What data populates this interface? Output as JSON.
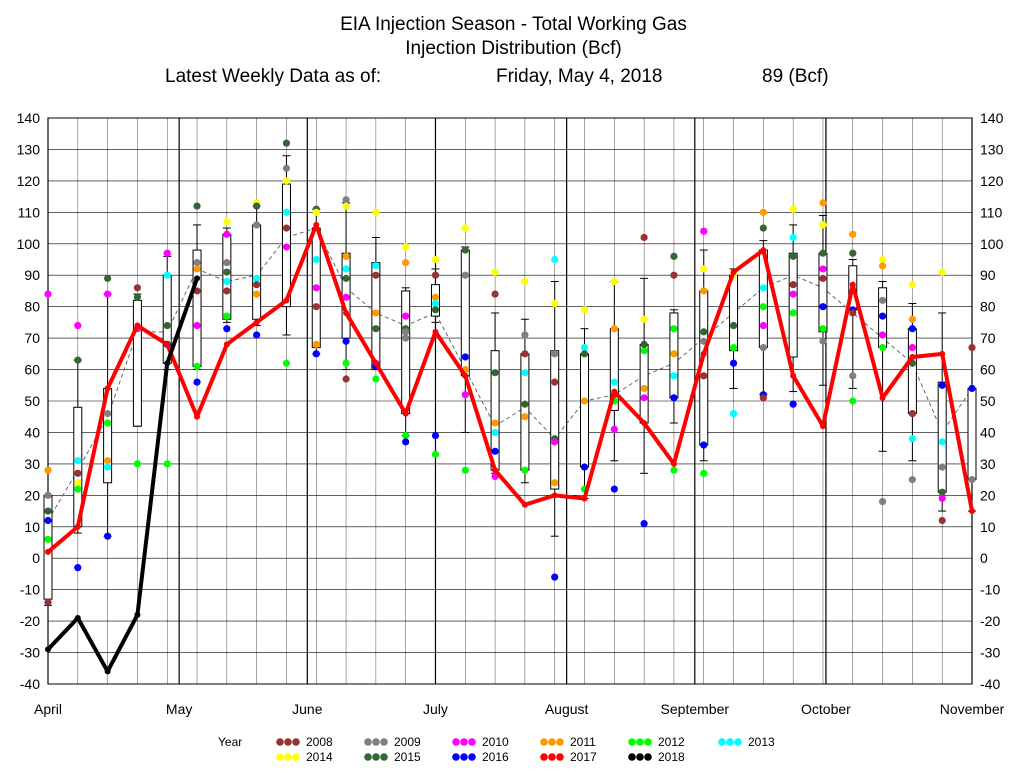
{
  "header": {
    "title_line1": "EIA Injection Season - Total Working Gas",
    "title_line2": "Injection Distribution (Bcf)",
    "latest_label": "Latest Weekly Data as of:",
    "latest_date": "Friday, May 4, 2018",
    "latest_value": "89 (Bcf)"
  },
  "chart_data": {
    "type": "line",
    "title": "EIA Injection Season - Total Working Gas",
    "subtitle": "Injection Distribution (Bcf)",
    "ylim": [
      -40,
      140
    ],
    "yticks": [
      140,
      130,
      120,
      110,
      100,
      90,
      80,
      70,
      60,
      50,
      40,
      30,
      20,
      10,
      0,
      -10,
      -20,
      -30,
      -40
    ],
    "x_labels": [
      "April",
      "May",
      "June",
      "July",
      "August",
      "September",
      "October",
      "November"
    ],
    "grid": true,
    "legend_position": "bottom",
    "legend_title": "Year",
    "series": [
      {
        "name": "2008",
        "color": "#993333"
      },
      {
        "name": "2009",
        "color": "#808080"
      },
      {
        "name": "2010",
        "color": "#ff00ff"
      },
      {
        "name": "2011",
        "color": "#ff9900"
      },
      {
        "name": "2012",
        "color": "#00ff00"
      },
      {
        "name": "2013",
        "color": "#00ffff"
      },
      {
        "name": "2014",
        "color": "#ffff00"
      },
      {
        "name": "2015",
        "color": "#336633"
      },
      {
        "name": "2016",
        "color": "#0000ff"
      },
      {
        "name": "2017",
        "color": "#ff0000"
      },
      {
        "name": "2018",
        "color": "#000000"
      }
    ],
    "week_x": [
      0,
      1,
      2,
      3,
      4,
      5,
      6,
      7,
      8,
      9,
      10,
      11,
      12,
      13,
      14,
      15,
      16,
      17,
      18,
      19,
      20,
      21,
      22,
      23,
      24,
      25,
      26,
      27,
      28,
      29,
      30,
      31,
      32,
      33,
      34,
      35
    ],
    "series_2017": [
      2,
      10,
      54,
      74,
      68,
      45,
      68,
      75,
      82,
      106,
      78,
      62,
      46,
      72,
      58,
      28,
      17,
      20,
      19,
      53,
      43,
      30,
      65,
      91,
      98,
      58,
      42,
      87,
      51,
      64,
      65,
      15
    ],
    "series_2018": [
      -29,
      -19,
      -36,
      -18,
      62,
      89
    ],
    "average_5yr": [
      12,
      28,
      45,
      72,
      72,
      92,
      88,
      90,
      102,
      105,
      86,
      78,
      74,
      78,
      60,
      42,
      48,
      38,
      50,
      52,
      58,
      62,
      70,
      78,
      86,
      90,
      86,
      78,
      70,
      62,
      40,
      54
    ],
    "boxes": [
      {
        "w": 0,
        "low": -13,
        "high": 20,
        "min": -15,
        "max": 20
      },
      {
        "w": 1,
        "low": 10,
        "high": 48,
        "min": 8,
        "max": 63
      },
      {
        "w": 2,
        "low": 24,
        "high": 54,
        "min": 7,
        "max": 84
      },
      {
        "w": 3,
        "low": 42,
        "high": 82,
        "min": 42,
        "max": 84
      },
      {
        "w": 4,
        "low": 62,
        "high": 90,
        "min": 60,
        "max": 96
      },
      {
        "w": 5,
        "low": 61,
        "high": 98,
        "min": 60,
        "max": 106
      },
      {
        "w": 6,
        "low": 76,
        "high": 103,
        "min": 75,
        "max": 105
      },
      {
        "w": 7,
        "low": 76,
        "high": 106,
        "min": 74,
        "max": 112
      },
      {
        "w": 8,
        "low": 80,
        "high": 119,
        "min": 71,
        "max": 128
      },
      {
        "w": 9,
        "low": 67,
        "high": 105,
        "min": 65,
        "max": 111
      },
      {
        "w": 10,
        "low": 70,
        "high": 97,
        "min": 60,
        "max": 113
      },
      {
        "w": 11,
        "low": 60,
        "high": 94,
        "min": 60,
        "max": 102
      },
      {
        "w": 12,
        "low": 46,
        "high": 85,
        "min": 39,
        "max": 86
      },
      {
        "w": 13,
        "low": 77,
        "high": 87,
        "min": 75,
        "max": 92
      },
      {
        "w": 14,
        "low": 58,
        "high": 98,
        "min": 40,
        "max": 99
      },
      {
        "w": 15,
        "low": 28,
        "high": 66,
        "min": 27,
        "max": 78
      },
      {
        "w": 16,
        "low": 28,
        "high": 65,
        "min": 24,
        "max": 76
      },
      {
        "w": 17,
        "low": 22,
        "high": 66,
        "min": 7,
        "max": 88
      },
      {
        "w": 18,
        "low": 29,
        "high": 65,
        "min": 19,
        "max": 73
      },
      {
        "w": 19,
        "low": 47,
        "high": 73,
        "min": 31,
        "max": 88
      },
      {
        "w": 20,
        "low": 43,
        "high": 68,
        "min": 27,
        "max": 89
      },
      {
        "w": 21,
        "low": 51,
        "high": 78,
        "min": 43,
        "max": 79
      },
      {
        "w": 22,
        "low": 36,
        "high": 85,
        "min": 31,
        "max": 98
      },
      {
        "w": 23,
        "low": 66,
        "high": 90,
        "min": 54,
        "max": 92
      },
      {
        "w": 24,
        "low": 67,
        "high": 98,
        "min": 52,
        "max": 101
      },
      {
        "w": 25,
        "low": 64,
        "high": 97,
        "min": 53,
        "max": 106
      },
      {
        "w": 26,
        "low": 72,
        "high": 97,
        "min": 55,
        "max": 109
      },
      {
        "w": 27,
        "low": 79,
        "high": 93,
        "min": 54,
        "max": 95
      },
      {
        "w": 28,
        "low": 67,
        "high": 86,
        "min": 34,
        "max": 88
      },
      {
        "w": 29,
        "low": 46,
        "high": 73,
        "min": 31,
        "max": 81
      },
      {
        "w": 30,
        "low": 21,
        "high": 56,
        "min": 15,
        "max": 78
      },
      {
        "w": 31,
        "low": 25,
        "high": 54,
        "min": 15,
        "max": 54
      }
    ],
    "points": [
      [
        0,
        28,
        "2011"
      ],
      [
        0,
        15,
        "2015"
      ],
      [
        0,
        12,
        "2016"
      ],
      [
        0,
        6,
        "2012"
      ],
      [
        0,
        20,
        "2009"
      ],
      [
        0,
        84,
        "2010"
      ],
      [
        0,
        -14,
        "2008"
      ],
      [
        1,
        74,
        "2010"
      ],
      [
        1,
        63,
        "2015"
      ],
      [
        1,
        31,
        "2013"
      ],
      [
        1,
        27,
        "2008"
      ],
      [
        1,
        24,
        "2014"
      ],
      [
        1,
        22,
        "2012"
      ],
      [
        1,
        -3,
        "2016"
      ],
      [
        2,
        89,
        "2015"
      ],
      [
        2,
        84,
        "2010"
      ],
      [
        2,
        46,
        "2009"
      ],
      [
        2,
        43,
        "2012"
      ],
      [
        2,
        31,
        "2011"
      ],
      [
        2,
        29,
        "2013"
      ],
      [
        2,
        7,
        "2016"
      ],
      [
        3,
        86,
        "2008"
      ],
      [
        3,
        83,
        "2015"
      ],
      [
        3,
        30,
        "2012"
      ],
      [
        3,
        73,
        "2010"
      ],
      [
        4,
        97,
        "2010"
      ],
      [
        4,
        74,
        "2015"
      ],
      [
        4,
        68,
        "2016"
      ],
      [
        4,
        30,
        "2012"
      ],
      [
        4,
        90,
        "2013"
      ],
      [
        5,
        112,
        "2015"
      ],
      [
        5,
        94,
        "2009"
      ],
      [
        5,
        92,
        "2011"
      ],
      [
        5,
        85,
        "2008"
      ],
      [
        5,
        74,
        "2010"
      ],
      [
        5,
        56,
        "2016"
      ],
      [
        5,
        61,
        "2012"
      ],
      [
        6,
        107,
        "2014"
      ],
      [
        6,
        103,
        "2010"
      ],
      [
        6,
        94,
        "2009"
      ],
      [
        6,
        91,
        "2015"
      ],
      [
        6,
        85,
        "2008"
      ],
      [
        6,
        88,
        "2013"
      ],
      [
        6,
        73,
        "2016"
      ],
      [
        6,
        77,
        "2012"
      ],
      [
        7,
        113,
        "2014"
      ],
      [
        7,
        112,
        "2015"
      ],
      [
        7,
        106,
        "2009"
      ],
      [
        7,
        89,
        "2013"
      ],
      [
        7,
        84,
        "2011"
      ],
      [
        7,
        87,
        "2008"
      ],
      [
        7,
        71,
        "2016"
      ],
      [
        8,
        132,
        "2015"
      ],
      [
        8,
        124,
        "2009"
      ],
      [
        8,
        120,
        "2014"
      ],
      [
        8,
        110,
        "2013"
      ],
      [
        8,
        105,
        "2008"
      ],
      [
        8,
        99,
        "2010"
      ],
      [
        8,
        62,
        "2012"
      ],
      [
        9,
        111,
        "2015"
      ],
      [
        9,
        110,
        "2014"
      ],
      [
        9,
        95,
        "2013"
      ],
      [
        9,
        86,
        "2010"
      ],
      [
        9,
        80,
        "2008"
      ],
      [
        9,
        68,
        "2011"
      ],
      [
        9,
        65,
        "2016"
      ],
      [
        10,
        114,
        "2009"
      ],
      [
        10,
        112,
        "2014"
      ],
      [
        10,
        96,
        "2011"
      ],
      [
        10,
        92,
        "2013"
      ],
      [
        10,
        89,
        "2015"
      ],
      [
        10,
        83,
        "2010"
      ],
      [
        10,
        69,
        "2016"
      ],
      [
        10,
        62,
        "2012"
      ],
      [
        10,
        57,
        "2008"
      ],
      [
        11,
        110,
        "2014"
      ],
      [
        11,
        93,
        "2013"
      ],
      [
        11,
        90,
        "2008"
      ],
      [
        11,
        78,
        "2011"
      ],
      [
        11,
        73,
        "2015"
      ],
      [
        11,
        62,
        "2010"
      ],
      [
        11,
        61,
        "2016"
      ],
      [
        11,
        57,
        "2012"
      ],
      [
        12,
        99,
        "2014"
      ],
      [
        12,
        94,
        "2011"
      ],
      [
        12,
        77,
        "2010"
      ],
      [
        12,
        73,
        "2015"
      ],
      [
        12,
        72,
        "2009"
      ],
      [
        12,
        70,
        "2009"
      ],
      [
        12,
        39,
        "2012"
      ],
      [
        12,
        37,
        "2016"
      ],
      [
        13,
        95,
        "2014"
      ],
      [
        13,
        90,
        "2008"
      ],
      [
        13,
        83,
        "2011"
      ],
      [
        13,
        81,
        "2013"
      ],
      [
        13,
        79,
        "2015"
      ],
      [
        13,
        39,
        "2016"
      ],
      [
        13,
        33,
        "2012"
      ],
      [
        14,
        105,
        "2014"
      ],
      [
        14,
        98,
        "2015"
      ],
      [
        14,
        90,
        "2009"
      ],
      [
        14,
        64,
        "2016"
      ],
      [
        14,
        60,
        "2011"
      ],
      [
        14,
        52,
        "2010"
      ],
      [
        14,
        28,
        "2012"
      ],
      [
        15,
        91,
        "2014"
      ],
      [
        15,
        84,
        "2008"
      ],
      [
        15,
        59,
        "2015"
      ],
      [
        15,
        43,
        "2011"
      ],
      [
        15,
        40,
        "2013"
      ],
      [
        15,
        34,
        "2016"
      ],
      [
        15,
        26,
        "2010"
      ],
      [
        16,
        88,
        "2014"
      ],
      [
        16,
        71,
        "2009"
      ],
      [
        16,
        65,
        "2008"
      ],
      [
        16,
        59,
        "2013"
      ],
      [
        16,
        49,
        "2015"
      ],
      [
        16,
        45,
        "2011"
      ],
      [
        16,
        28,
        "2012"
      ],
      [
        17,
        95,
        "2013"
      ],
      [
        17,
        81,
        "2014"
      ],
      [
        17,
        65,
        "2009"
      ],
      [
        17,
        56,
        "2008"
      ],
      [
        17,
        38,
        "2015"
      ],
      [
        17,
        37,
        "2010"
      ],
      [
        17,
        24,
        "2011"
      ],
      [
        17,
        -6,
        "2016"
      ],
      [
        18,
        79,
        "2014"
      ],
      [
        18,
        67,
        "2013"
      ],
      [
        18,
        65,
        "2015"
      ],
      [
        18,
        50,
        "2011"
      ],
      [
        18,
        29,
        "2016"
      ],
      [
        18,
        22,
        "2012"
      ],
      [
        19,
        88,
        "2014"
      ],
      [
        19,
        73,
        "2011"
      ],
      [
        19,
        56,
        "2013"
      ],
      [
        19,
        52,
        "2008"
      ],
      [
        19,
        50,
        "2012"
      ],
      [
        19,
        41,
        "2010"
      ],
      [
        19,
        22,
        "2016"
      ],
      [
        20,
        102,
        "2008"
      ],
      [
        20,
        76,
        "2014"
      ],
      [
        20,
        66,
        "2012"
      ],
      [
        20,
        68,
        "2015"
      ],
      [
        20,
        54,
        "2011"
      ],
      [
        20,
        51,
        "2010"
      ],
      [
        20,
        11,
        "2016"
      ],
      [
        21,
        96,
        "2015"
      ],
      [
        21,
        90,
        "2008"
      ],
      [
        21,
        73,
        "2012"
      ],
      [
        21,
        65,
        "2011"
      ],
      [
        21,
        58,
        "2013"
      ],
      [
        21,
        51,
        "2016"
      ],
      [
        21,
        28,
        "2012"
      ],
      [
        22,
        104,
        "2010"
      ],
      [
        22,
        92,
        "2014"
      ],
      [
        22,
        85,
        "2011"
      ],
      [
        22,
        72,
        "2015"
      ],
      [
        22,
        69,
        "2009"
      ],
      [
        22,
        58,
        "2008"
      ],
      [
        22,
        36,
        "2016"
      ],
      [
        22,
        27,
        "2012"
      ],
      [
        23,
        90,
        "2014"
      ],
      [
        23,
        74,
        "2015"
      ],
      [
        23,
        67,
        "2012"
      ],
      [
        23,
        62,
        "2016"
      ],
      [
        23,
        46,
        "2013"
      ],
      [
        24,
        110,
        "2011"
      ],
      [
        24,
        105,
        "2015"
      ],
      [
        24,
        86,
        "2013"
      ],
      [
        24,
        80,
        "2012"
      ],
      [
        24,
        74,
        "2010"
      ],
      [
        24,
        67,
        "2009"
      ],
      [
        24,
        52,
        "2016"
      ],
      [
        24,
        51,
        "2008"
      ],
      [
        25,
        111,
        "2014"
      ],
      [
        25,
        102,
        "2013"
      ],
      [
        25,
        96,
        "2015"
      ],
      [
        25,
        87,
        "2008"
      ],
      [
        25,
        84,
        "2010"
      ],
      [
        25,
        78,
        "2012"
      ],
      [
        25,
        49,
        "2016"
      ],
      [
        26,
        113,
        "2011"
      ],
      [
        26,
        106,
        "2014"
      ],
      [
        26,
        97,
        "2015"
      ],
      [
        26,
        92,
        "2010"
      ],
      [
        26,
        89,
        "2008"
      ],
      [
        26,
        80,
        "2016"
      ],
      [
        26,
        73,
        "2012"
      ],
      [
        26,
        69,
        "2009"
      ],
      [
        27,
        103,
        "2011"
      ],
      [
        27,
        97,
        "2015"
      ],
      [
        27,
        79,
        "2016"
      ],
      [
        27,
        78,
        "2008"
      ],
      [
        27,
        58,
        "2009"
      ],
      [
        27,
        50,
        "2012"
      ],
      [
        28,
        95,
        "2014"
      ],
      [
        28,
        93,
        "2011"
      ],
      [
        28,
        82,
        "2009"
      ],
      [
        28,
        77,
        "2016"
      ],
      [
        28,
        71,
        "2010"
      ],
      [
        28,
        67,
        "2012"
      ],
      [
        28,
        18,
        "2009"
      ],
      [
        29,
        87,
        "2014"
      ],
      [
        29,
        76,
        "2011"
      ],
      [
        29,
        73,
        "2016"
      ],
      [
        29,
        67,
        "2010"
      ],
      [
        29,
        62,
        "2015"
      ],
      [
        29,
        46,
        "2008"
      ],
      [
        29,
        38,
        "2013"
      ],
      [
        29,
        25,
        "2009"
      ],
      [
        30,
        91,
        "2014"
      ],
      [
        30,
        55,
        "2016"
      ],
      [
        30,
        37,
        "2013"
      ],
      [
        30,
        29,
        "2009"
      ],
      [
        30,
        21,
        "2015"
      ],
      [
        30,
        19,
        "2010"
      ],
      [
        30,
        12,
        "2008"
      ],
      [
        31,
        67,
        "2008"
      ],
      [
        31,
        54,
        "2016"
      ],
      [
        31,
        25,
        "2009"
      ]
    ]
  }
}
